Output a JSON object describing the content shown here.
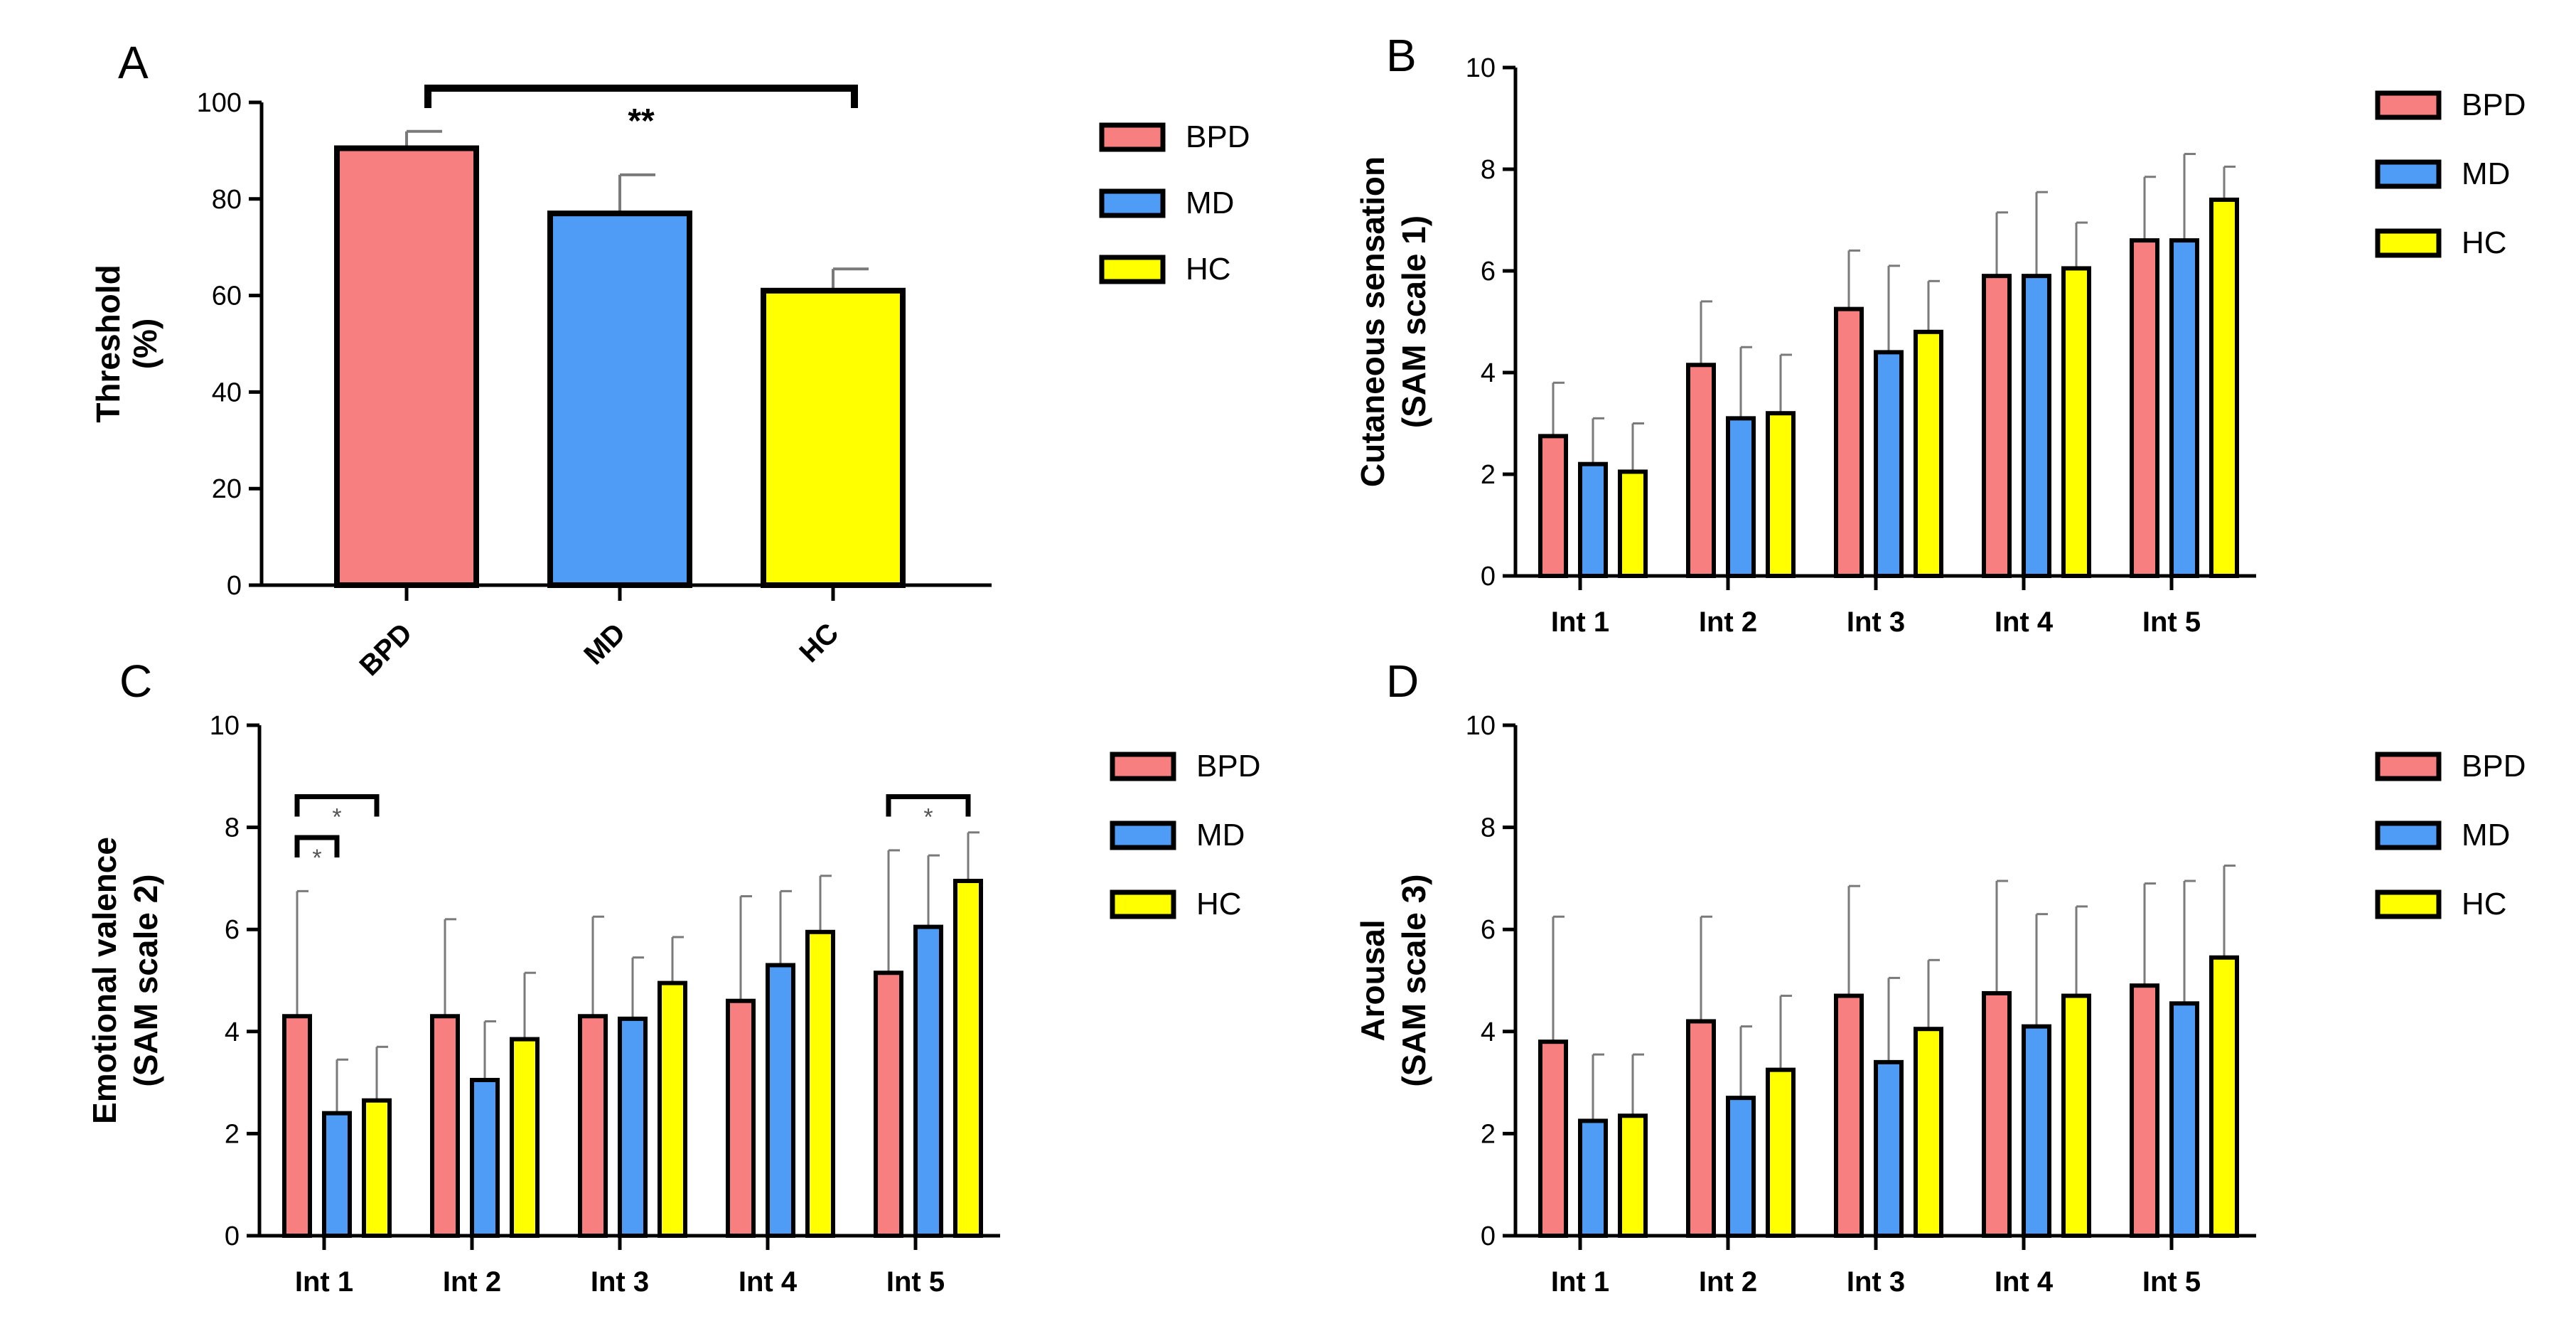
{
  "figure": {
    "panels": [
      {
        "key": "A",
        "letter": "A"
      },
      {
        "key": "B",
        "letter": "B"
      },
      {
        "key": "C",
        "letter": "C"
      },
      {
        "key": "D",
        "letter": "D"
      }
    ],
    "colors": {
      "BPD": "#f87f7f",
      "MD": "#4f9cf6",
      "HC": "#ffff00"
    }
  },
  "chart_data": [
    {
      "panel": "A",
      "type": "bar",
      "title": "",
      "ylabel_lines": [
        "Threshold",
        "(%)"
      ],
      "ylim": [
        0,
        100
      ],
      "yticks": [
        0,
        20,
        40,
        60,
        80,
        100
      ],
      "categories": [
        "BPD",
        "MD",
        "HC"
      ],
      "values": [
        90.5,
        77,
        61
      ],
      "errors": [
        3.5,
        8,
        4.5
      ],
      "legend": [
        "BPD",
        "MD",
        "HC"
      ],
      "significance": [
        {
          "from": "BPD",
          "to": "HC",
          "label": "**"
        }
      ]
    },
    {
      "panel": "B",
      "type": "bar",
      "ylabel_lines": [
        "Cutaneous sensation",
        "(SAM scale 1)"
      ],
      "ylim": [
        0,
        10
      ],
      "yticks": [
        0,
        2,
        4,
        6,
        8,
        10
      ],
      "categories": [
        "Int 1",
        "Int 2",
        "Int 3",
        "Int 4",
        "Int 5"
      ],
      "series": [
        {
          "name": "BPD",
          "values": [
            2.75,
            4.15,
            5.25,
            5.9,
            6.6
          ],
          "errors": [
            1.05,
            1.25,
            1.15,
            1.25,
            1.25
          ]
        },
        {
          "name": "MD",
          "values": [
            2.2,
            3.1,
            4.4,
            5.9,
            6.6
          ],
          "errors": [
            0.9,
            1.4,
            1.7,
            1.65,
            1.7
          ]
        },
        {
          "name": "HC",
          "values": [
            2.05,
            3.2,
            4.8,
            6.05,
            7.4
          ],
          "errors": [
            0.95,
            1.15,
            1.0,
            0.9,
            0.65
          ]
        }
      ],
      "legend": [
        "BPD",
        "MD",
        "HC"
      ]
    },
    {
      "panel": "C",
      "type": "bar",
      "ylabel_lines": [
        "Emotional valence",
        "(SAM scale 2)"
      ],
      "ylim": [
        0,
        10
      ],
      "yticks": [
        0,
        2,
        4,
        6,
        8,
        10
      ],
      "categories": [
        "Int 1",
        "Int 2",
        "Int 3",
        "Int 4",
        "Int 5"
      ],
      "series": [
        {
          "name": "BPD",
          "values": [
            4.3,
            4.3,
            4.3,
            4.6,
            5.15
          ],
          "errors": [
            2.45,
            1.9,
            1.95,
            2.05,
            2.4
          ]
        },
        {
          "name": "MD",
          "values": [
            2.4,
            3.05,
            4.25,
            5.3,
            6.05
          ],
          "errors": [
            1.05,
            1.15,
            1.2,
            1.45,
            1.4
          ]
        },
        {
          "name": "HC",
          "values": [
            2.65,
            3.85,
            4.95,
            5.95,
            6.95
          ],
          "errors": [
            1.05,
            1.3,
            0.9,
            1.1,
            0.95
          ]
        }
      ],
      "legend": [
        "BPD",
        "MD",
        "HC"
      ],
      "significance": [
        {
          "category": "Int 1",
          "from": "BPD",
          "to": "MD",
          "label": "*",
          "level": 7.8
        },
        {
          "category": "Int 1",
          "from": "BPD",
          "to": "HC",
          "label": "*",
          "level": 8.6
        },
        {
          "category": "Int 5",
          "from": "BPD",
          "to": "HC",
          "label": "*",
          "level": 8.6
        }
      ]
    },
    {
      "panel": "D",
      "type": "bar",
      "ylabel_lines": [
        "Arousal",
        "(SAM scale 3)"
      ],
      "ylim": [
        0,
        10
      ],
      "yticks": [
        0,
        2,
        4,
        6,
        8,
        10
      ],
      "categories": [
        "Int 1",
        "Int 2",
        "Int 3",
        "Int 4",
        "Int 5"
      ],
      "series": [
        {
          "name": "BPD",
          "values": [
            3.8,
            4.2,
            4.7,
            4.75,
            4.9
          ],
          "errors": [
            2.45,
            2.05,
            2.15,
            2.2,
            2.0
          ]
        },
        {
          "name": "MD",
          "values": [
            2.25,
            2.7,
            3.4,
            4.1,
            4.55
          ],
          "errors": [
            1.3,
            1.4,
            1.65,
            2.2,
            2.4
          ]
        },
        {
          "name": "HC",
          "values": [
            2.35,
            3.25,
            4.05,
            4.7,
            5.45
          ],
          "errors": [
            1.2,
            1.45,
            1.35,
            1.75,
            1.8
          ]
        }
      ],
      "legend": [
        "BPD",
        "MD",
        "HC"
      ]
    }
  ]
}
